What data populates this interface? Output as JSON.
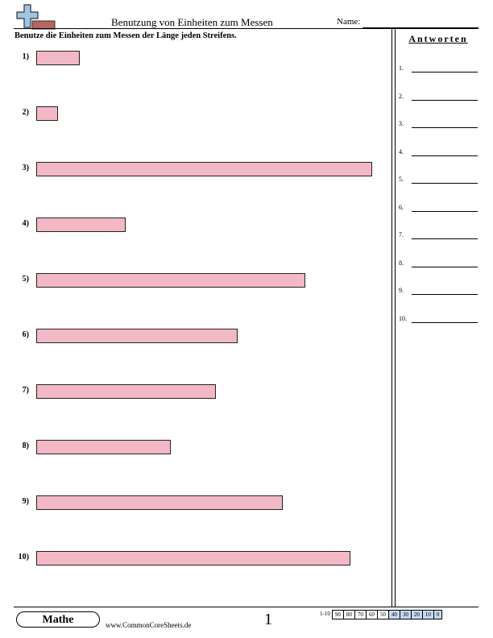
{
  "header": {
    "title": "Benutzung von Einheiten zum Messen",
    "name_label": "Name:"
  },
  "instructions": "Benutze die Einheiten zum Messen der Länge jeden Streifens.",
  "colors": {
    "strip_fill": "#f2b8c6",
    "score_highlight": "#c6d9f1"
  },
  "logo": {
    "icon": "plus-ruler-logo-icon"
  },
  "questions": [
    {
      "number": "1)",
      "length_fraction": 0.13
    },
    {
      "number": "2)",
      "length_fraction": 0.065
    },
    {
      "number": "3)",
      "length_fraction": 1.0
    },
    {
      "number": "4)",
      "length_fraction": 0.265
    },
    {
      "number": "5)",
      "length_fraction": 0.8
    },
    {
      "number": "6)",
      "length_fraction": 0.6
    },
    {
      "number": "7)",
      "length_fraction": 0.535
    },
    {
      "number": "8)",
      "length_fraction": 0.4
    },
    {
      "number": "9)",
      "length_fraction": 0.735
    },
    {
      "number": "10)",
      "length_fraction": 0.935
    }
  ],
  "answers": {
    "title": "Antworten",
    "items": [
      "1.",
      "2.",
      "3.",
      "4.",
      "5.",
      "6.",
      "7.",
      "8.",
      "9.",
      "10."
    ]
  },
  "footer": {
    "badge": "Mathe",
    "site": "www.CommonCoreSheets.de",
    "page_number": "1",
    "score_label": "1-10",
    "scores": [
      "90",
      "80",
      "70",
      "60",
      "50",
      "40",
      "30",
      "20",
      "10",
      "0"
    ],
    "highlighted_from_index": 5
  }
}
